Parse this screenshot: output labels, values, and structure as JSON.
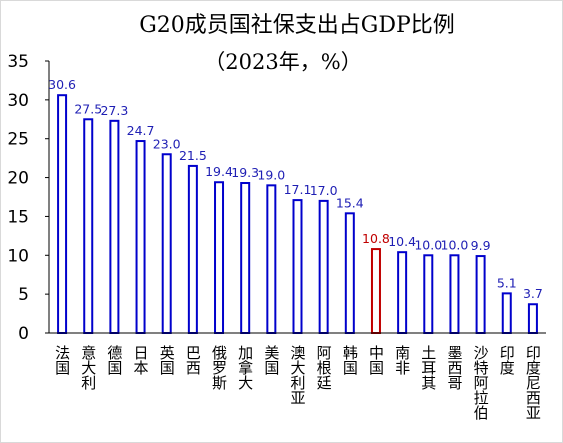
{
  "chart_data": {
    "type": "bar",
    "title": "G20成员国社保支出占GDP比例",
    "subtitle": "（2023年，%）",
    "xlabel": "",
    "ylabel": "",
    "ylim": [
      0,
      35
    ],
    "yticks": [
      "0",
      "5",
      "10",
      "15",
      "20",
      "25",
      "30",
      "35"
    ],
    "grid": false,
    "categories": [
      "法国",
      "意大利",
      "德国",
      "日本",
      "英国",
      "巴西",
      "俄罗斯",
      "加拿大",
      "美国",
      "澳大利亚",
      "阿根廷",
      "韩国",
      "中国",
      "南非",
      "土耳其",
      "墨西哥",
      "沙特阿拉伯",
      "印度",
      "印度尼西亚"
    ],
    "values": [
      30.6,
      27.5,
      27.3,
      24.7,
      23.0,
      21.5,
      19.4,
      19.3,
      19.0,
      17.1,
      17.0,
      15.4,
      10.8,
      10.4,
      10.0,
      10.0,
      9.9,
      5.1,
      3.7
    ],
    "data_labels": [
      "30.6",
      "27.5",
      "27.3",
      "24.7",
      "23.0",
      "21.5",
      "19.4",
      "19.3",
      "19.0",
      "17.1",
      "17.0",
      "15.4",
      "10.8",
      "10.4",
      "10.0",
      "10.0",
      "9.9",
      "5.1",
      "3.7"
    ],
    "highlight_index": 12,
    "colors": {
      "bar": "#0000cc",
      "highlight": "#c00000",
      "label": "#1f1fb4",
      "highlight_label": "#c00000",
      "axis": "#000000"
    }
  }
}
